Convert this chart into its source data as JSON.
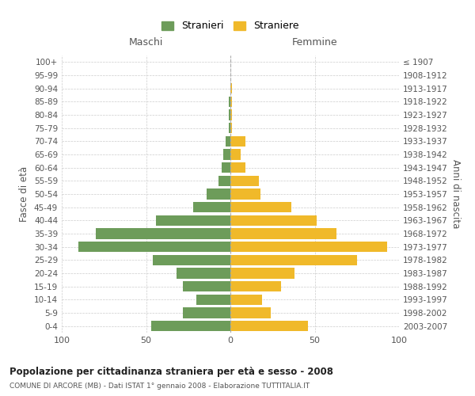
{
  "age_groups": [
    "0-4",
    "5-9",
    "10-14",
    "15-19",
    "20-24",
    "25-29",
    "30-34",
    "35-39",
    "40-44",
    "45-49",
    "50-54",
    "55-59",
    "60-64",
    "65-69",
    "70-74",
    "75-79",
    "80-84",
    "85-89",
    "90-94",
    "95-99",
    "100+"
  ],
  "birth_years": [
    "2003-2007",
    "1998-2002",
    "1993-1997",
    "1988-1992",
    "1983-1987",
    "1978-1982",
    "1973-1977",
    "1968-1972",
    "1963-1967",
    "1958-1962",
    "1953-1957",
    "1948-1952",
    "1943-1947",
    "1938-1942",
    "1933-1937",
    "1928-1932",
    "1923-1927",
    "1918-1922",
    "1913-1917",
    "1908-1912",
    "≤ 1907"
  ],
  "maschi": [
    47,
    28,
    20,
    28,
    32,
    46,
    90,
    80,
    44,
    22,
    14,
    7,
    5,
    4,
    3,
    1,
    1,
    1,
    0,
    0,
    0
  ],
  "femmine": [
    46,
    24,
    19,
    30,
    38,
    75,
    93,
    63,
    51,
    36,
    18,
    17,
    9,
    6,
    9,
    1,
    1,
    1,
    1,
    0,
    0
  ],
  "color_maschi": "#6d9c5a",
  "color_femmine": "#f0b92a",
  "title": "Popolazione per cittadinanza straniera per età e sesso - 2008",
  "subtitle": "COMUNE DI ARCORE (MB) - Dati ISTAT 1° gennaio 2008 - Elaborazione TUTTITALIA.IT",
  "xlabel_left": "Maschi",
  "xlabel_right": "Femmine",
  "ylabel_left": "Fasce di età",
  "ylabel_right": "Anni di nascita",
  "legend_maschi": "Stranieri",
  "legend_femmine": "Straniere",
  "xlim": 100,
  "background_color": "#ffffff",
  "grid_color": "#cccccc"
}
